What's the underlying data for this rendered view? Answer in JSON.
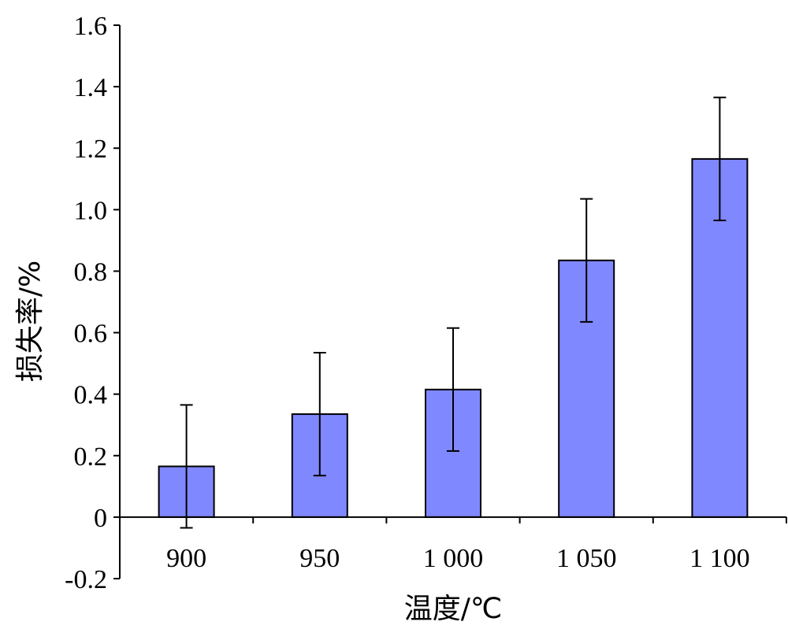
{
  "chart_data": {
    "type": "bar",
    "xlabel": "温度/℃",
    "ylabel": "损失率/%",
    "categories": [
      "900",
      "950",
      "1 000",
      "1 050",
      "1 100"
    ],
    "values": [
      0.165,
      0.335,
      0.415,
      0.835,
      1.165
    ],
    "error": [
      0.2,
      0.2,
      0.2,
      0.2,
      0.2
    ],
    "ylim": [
      -0.2,
      1.6
    ],
    "yticks": [
      -0.2,
      0,
      0.2,
      0.4,
      0.6,
      0.8,
      1.0,
      1.2,
      1.4,
      1.6
    ],
    "ytick_labels": [
      "-0.2",
      "0",
      "0.2",
      "0.4",
      "0.6",
      "0.8",
      "1.0",
      "1.2",
      "1.4",
      "1.6"
    ],
    "grid": false,
    "legend": "none",
    "bar_color": "#8088ff"
  }
}
